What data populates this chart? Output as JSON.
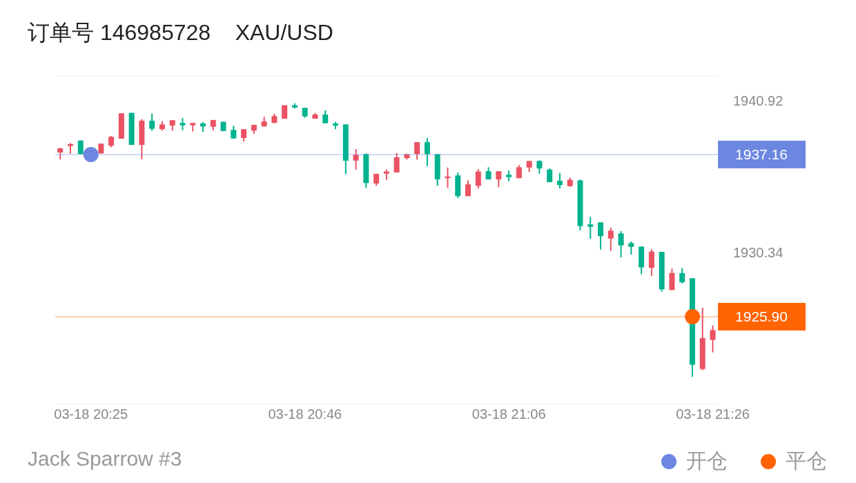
{
  "chart_data": {
    "type": "candlestick",
    "title": "订单号 146985728    XAU/USD",
    "categories": [
      null,
      null,
      null,
      "03-18 20:25",
      null,
      null,
      null,
      null,
      null,
      null,
      null,
      null,
      null,
      null,
      null,
      null,
      null,
      null,
      null,
      null,
      null,
      null,
      null,
      null,
      "03-18 20:46",
      null,
      null,
      null,
      null,
      null,
      null,
      null,
      null,
      null,
      null,
      null,
      null,
      null,
      null,
      null,
      null,
      null,
      null,
      null,
      "03-18 21:06",
      null,
      null,
      null,
      null,
      null,
      null,
      null,
      null,
      null,
      null,
      null,
      null,
      null,
      null,
      null,
      null,
      null,
      null,
      null,
      "03-18 21:26"
    ],
    "ohlc": [
      [
        1937.3,
        1937.62,
        1936.82,
        1937.59
      ],
      [
        1937.75,
        1937.96,
        1937.22,
        1937.88
      ],
      [
        1938.13,
        1938.13,
        1937.19,
        1937.19
      ],
      null,
      [
        1937.24,
        1937.94,
        1937.21,
        1937.91
      ],
      [
        1937.77,
        1938.44,
        1937.67,
        1938.39
      ],
      [
        1938.26,
        1940.02,
        1938.26,
        1940.02
      ],
      [
        1940.05,
        1940.05,
        1937.83,
        1937.83
      ],
      [
        1937.83,
        1939.62,
        1936.84,
        1939.51
      ],
      [
        1939.51,
        1940.0,
        1938.8,
        1938.95
      ],
      [
        1938.92,
        1939.47,
        1938.82,
        1939.25
      ],
      [
        1939.17,
        1939.54,
        1938.82,
        1939.54
      ],
      [
        1939.35,
        1939.69,
        1938.84,
        1939.19
      ],
      [
        1939.19,
        1939.35,
        1938.76,
        1939.35
      ],
      [
        1939.33,
        1939.4,
        1938.74,
        1939.11
      ],
      [
        1939.09,
        1939.56,
        1938.84,
        1939.56
      ],
      [
        1939.43,
        1939.43,
        1938.79,
        1938.79
      ],
      [
        1938.87,
        1939.16,
        1938.26,
        1938.28
      ],
      [
        1938.31,
        1938.92,
        1938.06,
        1938.92
      ],
      [
        1938.82,
        1939.22,
        1938.6,
        1939.22
      ],
      [
        1939.11,
        1939.78,
        1939.11,
        1939.46
      ],
      [
        1939.36,
        1939.99,
        1939.32,
        1939.83
      ],
      [
        1939.65,
        1940.58,
        1939.65,
        1940.58
      ],
      [
        1940.58,
        1940.72,
        1940.36,
        1940.42
      ],
      [
        1940.4,
        1940.4,
        1939.71,
        1939.81
      ],
      [
        1939.65,
        1940.04,
        1939.65,
        1939.94
      ],
      [
        1939.94,
        1940.23,
        1939.33,
        1939.33
      ],
      [
        1939.32,
        1939.43,
        1938.92,
        1939.17
      ],
      [
        1939.25,
        1939.25,
        1935.8,
        1936.73
      ],
      [
        1936.74,
        1937.54,
        1936.11,
        1937.15
      ],
      [
        1937.19,
        1937.24,
        1934.85,
        1935.18
      ],
      [
        1935.15,
        1935.82,
        1934.99,
        1935.82
      ],
      [
        1935.83,
        1936.12,
        1935.4,
        1935.98
      ],
      [
        1935.91,
        1937.26,
        1935.91,
        1936.97
      ],
      [
        1936.91,
        1937.19,
        1936.81,
        1937.19
      ],
      [
        1937.19,
        1938.02,
        1936.81,
        1938.02
      ],
      [
        1938.02,
        1938.31,
        1936.35,
        1937.19
      ],
      [
        1937.19,
        1937.19,
        1934.99,
        1935.43
      ],
      [
        1935.52,
        1936.26,
        1934.85,
        1935.63
      ],
      [
        1935.71,
        1935.91,
        1934.13,
        1934.27
      ],
      [
        1934.27,
        1935.37,
        1934.27,
        1935.09
      ],
      [
        1934.99,
        1936.15,
        1934.8,
        1935.98
      ],
      [
        1936.0,
        1936.28,
        1935.43,
        1935.43
      ],
      [
        1935.43,
        1936.0,
        1934.89,
        1936.0
      ],
      [
        1935.76,
        1936.06,
        1935.31,
        1935.59
      ],
      [
        1935.52,
        1936.43,
        1935.52,
        1936.28
      ],
      [
        1936.26,
        1936.71,
        1935.96,
        1936.71
      ],
      [
        1936.71,
        1936.76,
        1935.83,
        1936.19
      ],
      [
        1936.12,
        1936.19,
        1935.24,
        1935.24
      ],
      [
        1935.34,
        1935.88,
        1934.8,
        1935.04
      ],
      [
        1934.97,
        1935.56,
        1934.92,
        1935.4
      ],
      [
        1935.37,
        1935.42,
        1931.89,
        1932.19
      ],
      [
        1932.31,
        1932.83,
        1931.31,
        1932.14
      ],
      [
        1932.45,
        1932.45,
        1930.56,
        1931.49
      ],
      [
        1931.33,
        1932.08,
        1930.48,
        1931.87
      ],
      [
        1931.68,
        1931.84,
        1930.01,
        1930.85
      ],
      [
        1931.01,
        1931.12,
        1930.21,
        1930.75
      ],
      [
        1930.77,
        1930.77,
        1928.86,
        1929.32
      ],
      [
        1929.29,
        1930.58,
        1928.73,
        1930.42
      ],
      [
        1930.4,
        1930.4,
        1927.64,
        1927.8
      ],
      [
        1927.75,
        1929.24,
        1927.75,
        1928.93
      ],
      [
        1928.93,
        1929.27,
        1928.21,
        1928.29
      ],
      [
        1928.57,
        1928.57,
        1921.73,
        1922.56
      ],
      [
        1922.27,
        1926.52,
        1922.18,
        1924.41
      ],
      [
        1924.28,
        1925.29,
        1923.42,
        1924.97
      ]
    ],
    "colors": [
      "#eb5263",
      "#eb5263",
      "#00b38e",
      null,
      "#eb5263",
      "#eb5263",
      "#eb5263",
      "#00b38e",
      "#eb5263",
      "#00b38e",
      "#eb5263",
      "#eb5263",
      "#00b38e",
      "#eb5263",
      "#00b38e",
      "#eb5263",
      "#00b38e",
      "#00b38e",
      "#eb5263",
      "#eb5263",
      "#eb5263",
      "#eb5263",
      "#eb5263",
      "#00b38e",
      "#00b38e",
      "#eb5263",
      "#00b38e",
      "#00b38e",
      "#00b38e",
      "#eb5263",
      "#00b38e",
      "#eb5263",
      "#eb5263",
      "#eb5263",
      "#eb5263",
      "#eb5263",
      "#00b38e",
      "#00b38e",
      "#eb5263",
      "#00b38e",
      "#eb5263",
      "#eb5263",
      "#00b38e",
      "#eb5263",
      "#00b38e",
      "#eb5263",
      "#eb5263",
      "#00b38e",
      "#00b38e",
      "#00b38e",
      "#eb5263",
      "#00b38e",
      "#00b38e",
      "#00b38e",
      "#eb5263",
      "#00b38e",
      "#00b38e",
      "#00b38e",
      "#eb5263",
      "#00b38e",
      "#eb5263",
      "#00b38e",
      "#00b38e",
      "#eb5263",
      "#eb5263"
    ],
    "series": [
      {
        "name": "开仓",
        "type": "scatter",
        "color": "#6b87e0",
        "values": [
          null,
          null,
          null,
          1937.16,
          null,
          null,
          null,
          null,
          null,
          null,
          null,
          null,
          null,
          null,
          null,
          null,
          null,
          null,
          null,
          null,
          null,
          null,
          null,
          null,
          null,
          null,
          null,
          null,
          null,
          null,
          null,
          null,
          null,
          null,
          null,
          null,
          null,
          null,
          null,
          null,
          null,
          null,
          null,
          null,
          null,
          null,
          null,
          null,
          null,
          null,
          null,
          null,
          null,
          null,
          null,
          null,
          null,
          null,
          null,
          null,
          null,
          null,
          null,
          null,
          null
        ]
      },
      {
        "name": "平仓",
        "type": "scatter",
        "color": "#ff6400",
        "values": [
          null,
          null,
          null,
          null,
          null,
          null,
          null,
          null,
          null,
          null,
          null,
          null,
          null,
          null,
          null,
          null,
          null,
          null,
          null,
          null,
          null,
          null,
          null,
          null,
          null,
          null,
          null,
          null,
          null,
          null,
          null,
          null,
          null,
          null,
          null,
          null,
          null,
          null,
          null,
          null,
          null,
          null,
          null,
          null,
          null,
          null,
          null,
          null,
          null,
          null,
          null,
          null,
          null,
          null,
          null,
          null,
          null,
          null,
          null,
          null,
          null,
          null,
          1925.9,
          null,
          null
        ]
      }
    ],
    "ylim": [
      1919.86,
      1942.62
    ],
    "yticks": [
      1940.92,
      1930.34
    ],
    "ref_lines": [
      {
        "axis": "y",
        "value": 1937.16,
        "label": "1937.16",
        "color": "#6b87e0"
      },
      {
        "axis": "y",
        "value": 1925.9,
        "label": "1925.90",
        "color": "#ff6400"
      }
    ],
    "marker": "circle",
    "legend": "bottom right",
    "annotations": [
      "Jack Sparrow #3"
    ]
  }
}
